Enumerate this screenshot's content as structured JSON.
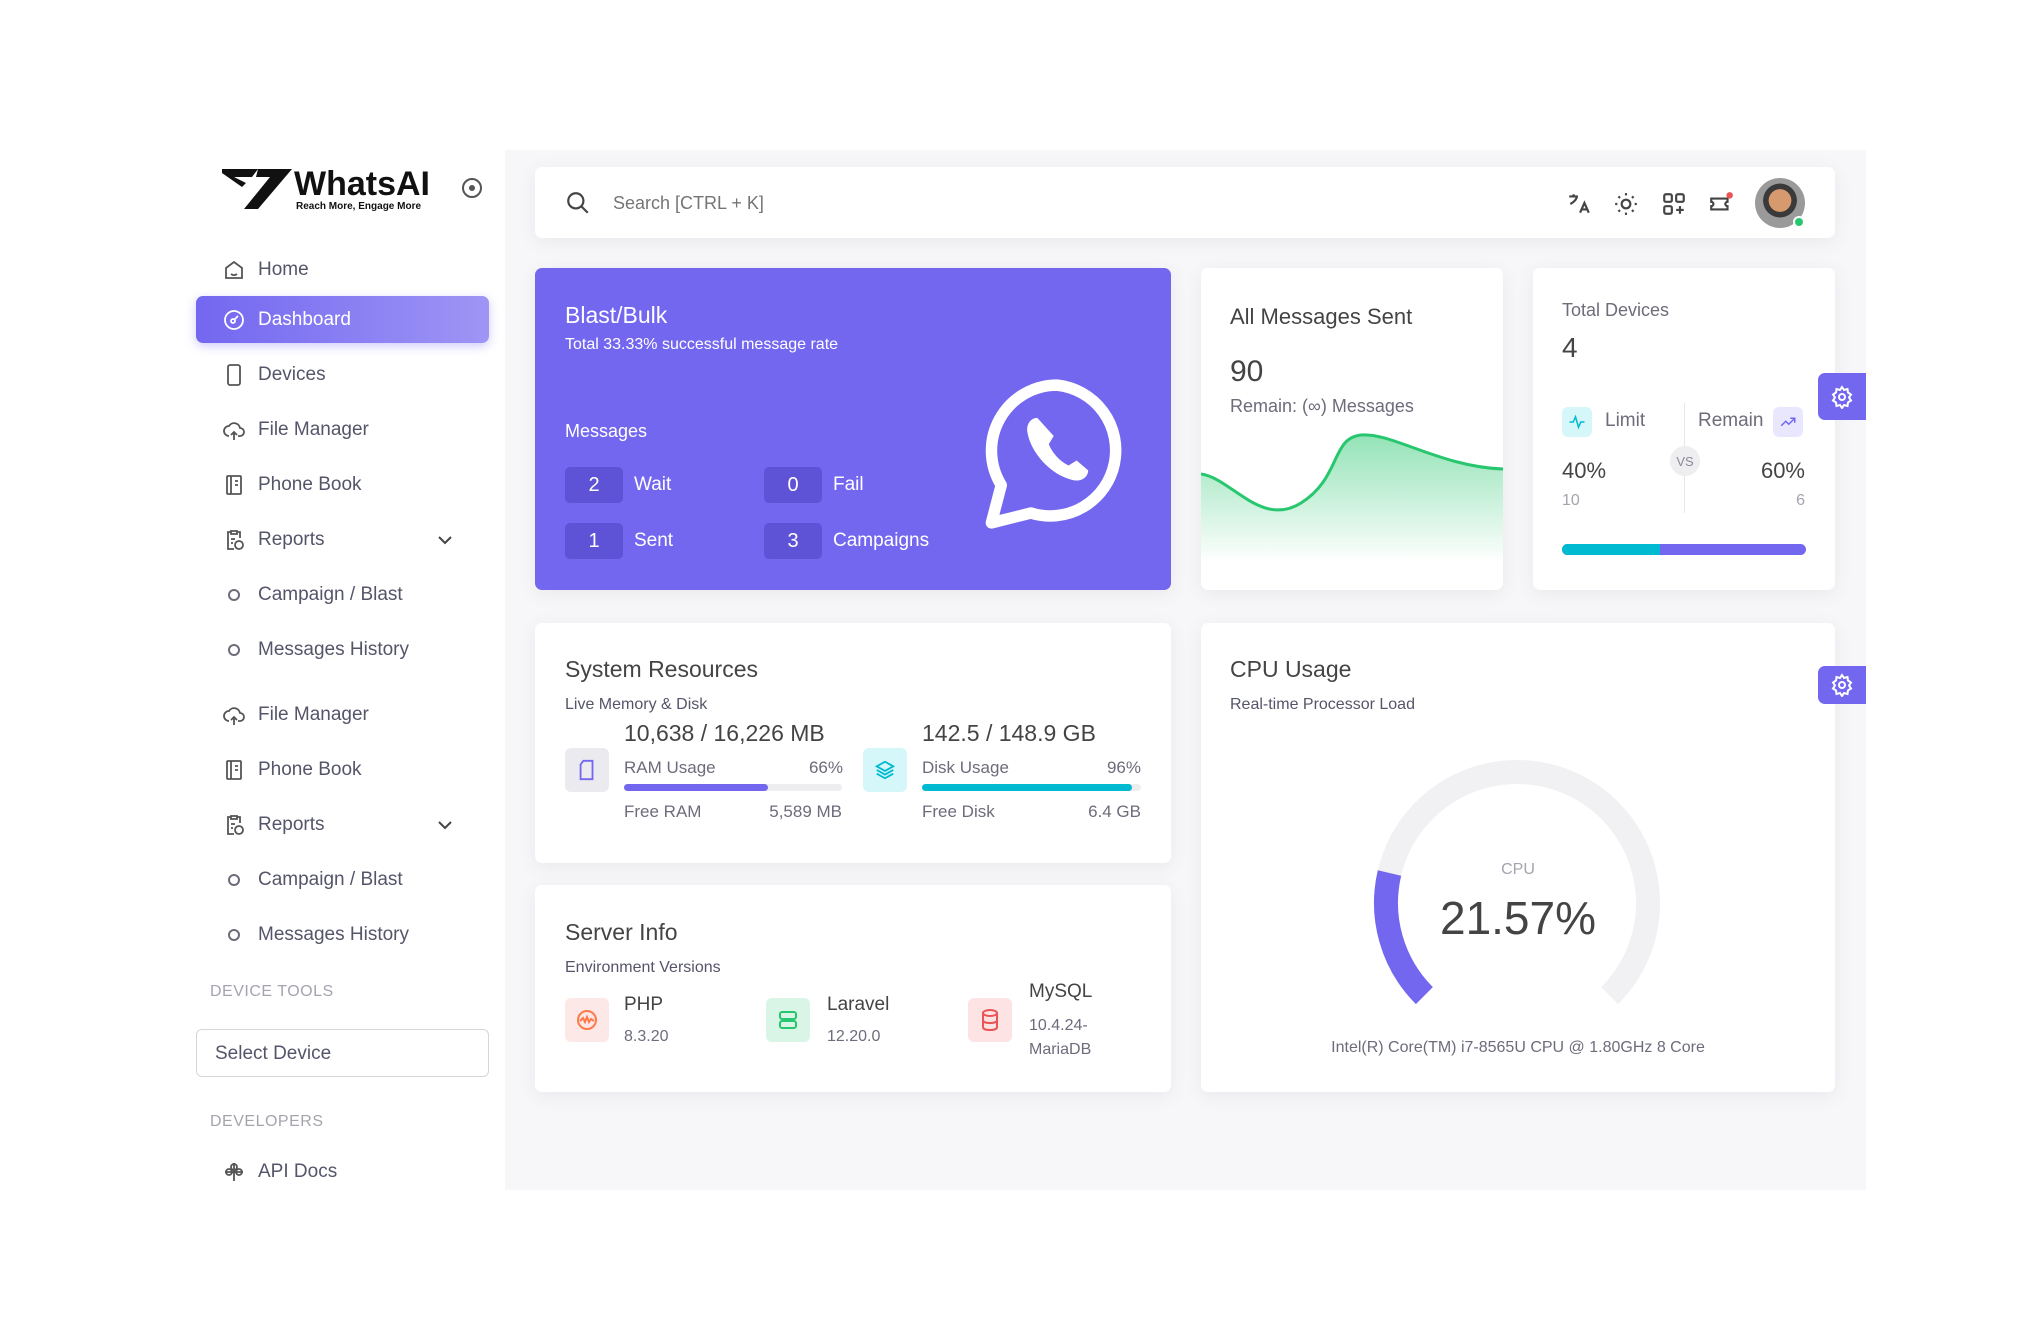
{
  "brand": {
    "name": "WhatsAI",
    "tagline": "Reach More, Engage More"
  },
  "sidebar": {
    "items": [
      {
        "label": "Home",
        "icon": "home-icon"
      },
      {
        "label": "Dashboard",
        "icon": "dashboard-icon",
        "active": true
      },
      {
        "label": "Devices",
        "icon": "smartphone-icon"
      },
      {
        "label": "File Manager",
        "icon": "cloud-upload-icon"
      },
      {
        "label": "Phone Book",
        "icon": "book-icon"
      },
      {
        "label": "Reports",
        "icon": "clipboard-clock-icon"
      },
      {
        "label": "Campaign / Blast",
        "icon": "circle-icon"
      },
      {
        "label": "Messages History",
        "icon": "circle-icon"
      },
      {
        "label": "File Manager",
        "icon": "cloud-upload-icon"
      },
      {
        "label": "Phone Book",
        "icon": "book-icon"
      },
      {
        "label": "Reports",
        "icon": "clipboard-clock-icon"
      },
      {
        "label": "Campaign / Blast",
        "icon": "circle-icon"
      },
      {
        "label": "Messages History",
        "icon": "circle-icon"
      }
    ],
    "device_tools": "DEVICE TOOLS",
    "select_device": "Select Device",
    "developers": "DEVELOPERS",
    "api_docs": "API Docs"
  },
  "topbar": {
    "search_placeholder": "Search [CTRL + K]",
    "icons": [
      "translate-icon",
      "sun-icon",
      "grid-plus-icon",
      "notification-icon"
    ],
    "status_color": "#28c76f"
  },
  "blast": {
    "title": "Blast/Bulk",
    "subtitle": "Total 33.33% successful message rate",
    "messages_label": "Messages",
    "stats": [
      {
        "value": "2",
        "label": "Wait"
      },
      {
        "value": "0",
        "label": "Fail"
      },
      {
        "value": "1",
        "label": "Sent"
      },
      {
        "value": "3",
        "label": "Campaigns"
      }
    ],
    "color": "#7367f0"
  },
  "all_messages": {
    "title": "All Messages Sent",
    "value": "90",
    "remain": "Remain: (∞) Messages"
  },
  "devices": {
    "title": "Total Devices",
    "value": "4",
    "limit_label": "Limit",
    "remain_label": "Remain",
    "limit_pct": "40%",
    "remain_pct": "60%",
    "limit_count": "10",
    "remain_count": "6",
    "vs": "VS",
    "limit_fraction": 0.4
  },
  "system": {
    "title": "System Resources",
    "subtitle": "Live Memory & Disk",
    "ram": {
      "value": "10,638 / 16,226 MB",
      "label": "RAM Usage",
      "pct": "66%",
      "fraction": 0.66,
      "free_label": "Free RAM",
      "free": "5,589 MB"
    },
    "disk": {
      "value": "142.5 / 148.9 GB",
      "label": "Disk Usage",
      "pct": "96%",
      "fraction": 0.96,
      "free_label": "Free Disk",
      "free": "6.4 GB"
    }
  },
  "server": {
    "title": "Server Info",
    "subtitle": "Environment Versions",
    "items": [
      {
        "name": "PHP",
        "version": "8.3.20"
      },
      {
        "name": "Laravel",
        "version": "12.20.0"
      },
      {
        "name": "MySQL",
        "version": "10.4.24-",
        "version2": "MariaDB"
      }
    ]
  },
  "cpu": {
    "title": "CPU Usage",
    "subtitle": "Real-time Processor Load",
    "label": "CPU",
    "value": "21.57%",
    "fraction": 0.2157,
    "processor": "Intel(R) Core(TM) i7-8565U CPU @ 1.80GHz 8 Core"
  }
}
